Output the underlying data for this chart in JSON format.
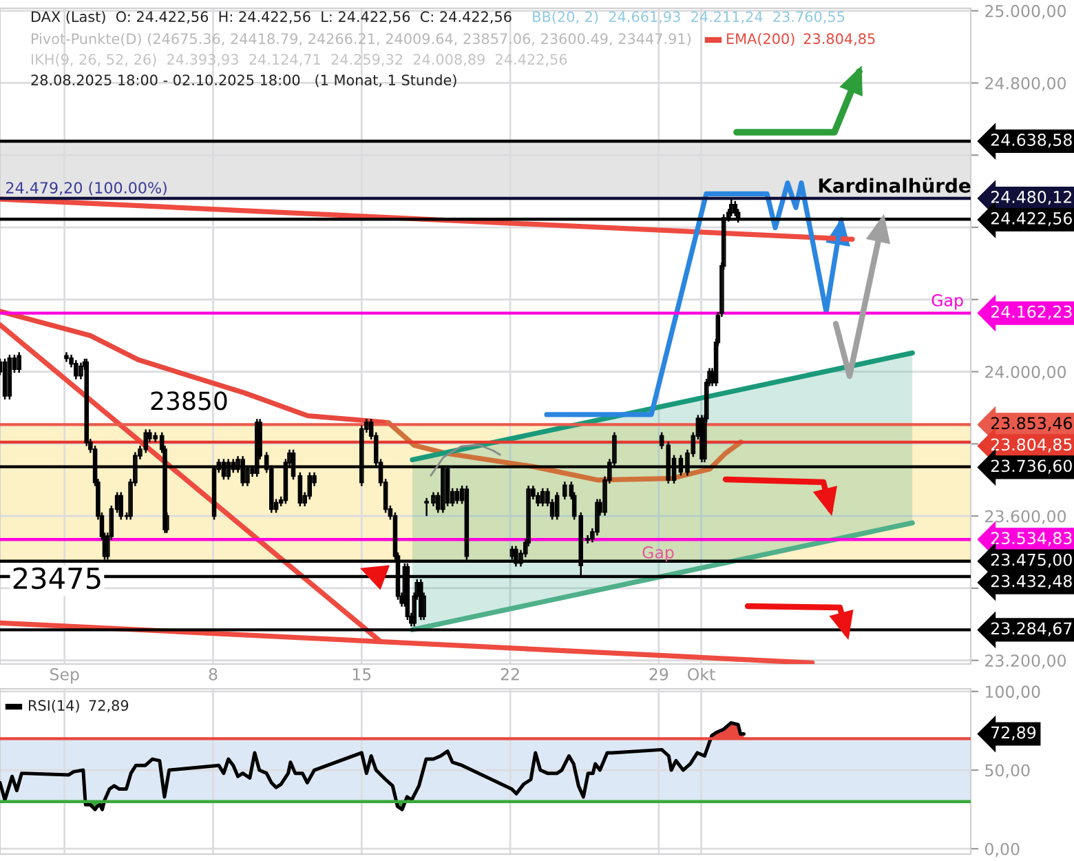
{
  "chart_data": [
    {
      "type": "candlestick",
      "title": "DAX (Last)  O: 24.422,56  H: 24.422,56  L: 24.422,56  C: 24.422,56",
      "subtitle": "28.08.2025 18:00 - 02.10.2025 18:00   (1 Monat, 1 Stunde)",
      "annotations": [
        "BB(20, 2)  24.661,93  24.211,24  23.760,55",
        "Pivot-Punkte(D) (24675.36, 24418.79, 24266.21, 24009.64, 23857.06, 23600.49, 23447.91)",
        "23.804,85",
        "IKH(9, 26, 52, 26)  24.393,93  24.124,71  24.259,32  24.008,89  24.422,56",
        "Gap",
        "Gap",
        {
          "text": "24.479,20 (100.00%)",
          "x": -1.8,
          "y": 24480.12
        },
        {
          "text": "23850",
          "x": 5.0,
          "y": 23853.46
        },
        {
          "text": "23475",
          "x": -1.5,
          "y": 23475
        },
        {
          "text": "Kardinalhürde",
          "x": 40.1,
          "y": 24480.12
        }
      ],
      "color": "#000000",
      "x": [
        -2.04,
        -1.81,
        -1.59,
        -1.36,
        -1.14,
        1.09,
        1.32,
        1.54,
        1.77,
        1.95,
        2.04,
        2.22,
        2.44,
        2.58,
        2.76,
        2.89,
        3.03,
        3.21,
        3.48,
        3.66,
        3.93,
        4.11,
        4.33,
        4.56,
        4.83,
        5.01,
        5.28,
        5.59,
        5.73,
        5.82,
        8.05,
        8.27,
        8.5,
        8.72,
        8.95,
        9.17,
        9.4,
        9.62,
        9.85,
        10.07,
        10.21,
        10.52,
        10.75,
        10.97,
        11.2,
        11.42,
        11.6,
        11.78,
        12.1,
        12.32,
        12.55,
        12.77,
        15.0,
        15.23,
        15.45,
        15.68,
        15.9,
        16.13,
        16.35,
        16.58,
        16.71,
        16.89,
        17.03,
        17.16,
        17.34,
        17.48,
        17.61,
        17.79,
        17.93,
        18.06,
        18.38,
        18.6,
        18.83,
        19.05,
        19.28,
        19.5,
        19.73,
        19.95,
        22.09,
        22.27,
        22.5,
        22.72,
        22.86,
        23.08,
        23.31,
        23.53,
        23.76,
        23.98,
        24.21,
        24.57,
        24.88,
        25.02,
        25.33,
        25.65,
        25.87,
        26.1,
        26.23,
        26.46,
        26.68,
        26.91,
        29.14,
        29.45,
        29.72,
        30.04,
        30.35,
        30.62,
        30.85,
        31.03,
        31.16,
        31.25,
        31.39,
        31.52,
        31.7,
        31.79,
        31.97,
        32.06,
        32.29,
        32.42,
        32.6,
        32.74
      ],
      "ohlc": [
        [
          24000,
          24036,
          23990,
          24026
        ],
        [
          24026,
          24036,
          23923,
          23933
        ],
        [
          23933,
          24047,
          23923,
          24037
        ],
        [
          24037,
          24047,
          23997,
          24007
        ],
        [
          24007,
          24054,
          23997,
          24044
        ],
        [
          24044,
          24054,
          24027,
          24037
        ],
        [
          24037,
          24047,
          24012,
          24022
        ],
        [
          24022,
          24032,
          23979,
          23989
        ],
        [
          23989,
          24025,
          23979,
          24015
        ],
        [
          24015,
          24036,
          24005,
          24026
        ],
        [
          24026,
          24036,
          23794,
          23804
        ],
        [
          23804,
          23814,
          23775,
          23785
        ],
        [
          23785,
          23795,
          23683,
          23693
        ],
        [
          23693,
          23703,
          23590,
          23600
        ],
        [
          23600,
          23610,
          23534,
          23544
        ],
        [
          23544,
          23554,
          23479,
          23489
        ],
        [
          23489,
          23554,
          23479,
          23544
        ],
        [
          23544,
          23629,
          23534,
          23619
        ],
        [
          23619,
          23666,
          23609,
          23656
        ],
        [
          23656,
          23666,
          23590,
          23600
        ],
        [
          23600,
          23610,
          23590,
          23600
        ],
        [
          23600,
          23703,
          23590,
          23693
        ],
        [
          23693,
          23777,
          23683,
          23767
        ],
        [
          23767,
          23795,
          23757,
          23785
        ],
        [
          23785,
          23840,
          23775,
          23830
        ],
        [
          23830,
          23840,
          23805,
          23815
        ],
        [
          23815,
          23832,
          23805,
          23822
        ],
        [
          23822,
          23832,
          23775,
          23785
        ],
        [
          23785,
          23795,
          23553,
          23563
        ],
        [
          23563,
          23610,
          23553,
          23600
        ],
        [
          23600,
          23740,
          23590,
          23730
        ],
        [
          23730,
          23758,
          23720,
          23748
        ],
        [
          23748,
          23758,
          23701,
          23711
        ],
        [
          23711,
          23758,
          23701,
          23748
        ],
        [
          23748,
          23758,
          23720,
          23730
        ],
        [
          23730,
          23766,
          23720,
          23756
        ],
        [
          23756,
          23766,
          23683,
          23693
        ],
        [
          23693,
          23740,
          23683,
          23730
        ],
        [
          23730,
          23740,
          23709,
          23719
        ],
        [
          23719,
          23869,
          23709,
          23859
        ],
        [
          23859,
          23869,
          23757,
          23767
        ],
        [
          23767,
          23777,
          23720,
          23730
        ],
        [
          23730,
          23740,
          23609,
          23619
        ],
        [
          23619,
          23647,
          23609,
          23637
        ],
        [
          23637,
          23654,
          23627,
          23644
        ],
        [
          23644,
          23758,
          23634,
          23748
        ],
        [
          23748,
          23784,
          23738,
          23774
        ],
        [
          23774,
          23784,
          23701,
          23711
        ],
        [
          23711,
          23721,
          23627,
          23637
        ],
        [
          23637,
          23666,
          23627,
          23656
        ],
        [
          23656,
          23721,
          23646,
          23711
        ],
        [
          23711,
          23721,
          23683,
          23693
        ],
        [
          23693,
          23851,
          23683,
          23841
        ],
        [
          23841,
          23869,
          23831,
          23859
        ],
        [
          23859,
          23869,
          23812,
          23822
        ],
        [
          23822,
          23832,
          23738,
          23748
        ],
        [
          23748,
          23758,
          23683,
          23693
        ],
        [
          23693,
          23703,
          23609,
          23619
        ],
        [
          23619,
          23629,
          23590,
          23600
        ],
        [
          23600,
          23610,
          23479,
          23489
        ],
        [
          23489,
          23499,
          23368,
          23378
        ],
        [
          23378,
          23388,
          23349,
          23359
        ],
        [
          23359,
          23469,
          23349,
          23459
        ],
        [
          23459,
          23469,
          23312,
          23322
        ],
        [
          23322,
          23332,
          23294,
          23304
        ],
        [
          23304,
          23388,
          23294,
          23378
        ],
        [
          23378,
          23425,
          23368,
          23415
        ],
        [
          23415,
          23425,
          23312,
          23322
        ],
        [
          23322,
          23388,
          23312,
          23378
        ],
        [
          23640,
          23650,
          23600,
          23637
        ],
        [
          23637,
          23666,
          23627,
          23656
        ],
        [
          23656,
          23666,
          23609,
          23619
        ],
        [
          23619,
          23740,
          23609,
          23730
        ],
        [
          23730,
          23740,
          23627,
          23637
        ],
        [
          23637,
          23677,
          23627,
          23667
        ],
        [
          23667,
          23677,
          23634,
          23644
        ],
        [
          23644,
          23684,
          23634,
          23674
        ],
        [
          23674,
          23684,
          23479,
          23489
        ],
        [
          23489,
          23517,
          23479,
          23507
        ],
        [
          23507,
          23517,
          23460,
          23470
        ],
        [
          23470,
          23506,
          23460,
          23496
        ],
        [
          23496,
          23536,
          23486,
          23526
        ],
        [
          23526,
          23684,
          23516,
          23674
        ],
        [
          23674,
          23684,
          23646,
          23656
        ],
        [
          23656,
          23666,
          23627,
          23637
        ],
        [
          23637,
          23677,
          23627,
          23667
        ],
        [
          23667,
          23677,
          23627,
          23637
        ],
        [
          23637,
          23647,
          23590,
          23600
        ],
        [
          23600,
          23666,
          23590,
          23656
        ],
        [
          23656,
          23695,
          23646,
          23685
        ],
        [
          23685,
          23695,
          23646,
          23656
        ],
        [
          23656,
          23666,
          23590,
          23600
        ],
        [
          23600,
          23610,
          23432,
          23463
        ],
        [
          23534,
          23547,
          23524,
          23537
        ],
        [
          23537,
          23566,
          23527,
          23556
        ],
        [
          23556,
          23647,
          23546,
          23637
        ],
        [
          23637,
          23647,
          23601,
          23611
        ],
        [
          23611,
          23710,
          23601,
          23700
        ],
        [
          23700,
          23758,
          23690,
          23748
        ],
        [
          23748,
          23832,
          23738,
          23822
        ],
        [
          23822,
          23832,
          23786,
          23796
        ],
        [
          23796,
          23806,
          23690,
          23700
        ],
        [
          23700,
          23769,
          23690,
          23759
        ],
        [
          23759,
          23769,
          23712,
          23722
        ],
        [
          23722,
          23784,
          23712,
          23774
        ],
        [
          23774,
          23832,
          23764,
          23822
        ],
        [
          23822,
          23880,
          23812,
          23870
        ],
        [
          23870,
          23880,
          23749,
          23759
        ],
        [
          23759,
          23880,
          23749,
          23870
        ],
        [
          23870,
          23980,
          23860,
          23970
        ],
        [
          23970,
          24010,
          23960,
          24000
        ],
        [
          24000,
          24010,
          23960,
          23970
        ],
        [
          23970,
          24091,
          23960,
          24081
        ],
        [
          24081,
          24165,
          24071,
          24155
        ],
        [
          24162,
          24303,
          24152,
          24293
        ],
        [
          24293,
          24436,
          24283,
          24426
        ],
        [
          24426,
          24451,
          24416,
          24441
        ],
        [
          24441,
          24480,
          24431,
          24463
        ],
        [
          24463,
          24473,
          24431,
          24441
        ],
        [
          24441,
          24451,
          24413,
          24422.56
        ]
      ],
      "series": [
        {
          "name": "EMA(200)",
          "type": "line",
          "color": "#e8483e",
          "x": [
            -2.04,
            2.22,
            4.47,
            9.49,
            12.46,
            16.26
          ],
          "values": [
            24167,
            24100,
            24033,
            23941,
            23878,
            23859
          ]
        },
        {
          "type": "line",
          "color": "#d0713a",
          "x": [
            16.26,
            17.48,
            18.96,
            23.08,
            26.1,
            29.59,
            31.39,
            32.15,
            32.87
          ],
          "values": [
            23859,
            23796,
            23774,
            23737,
            23700,
            23704,
            23730,
            23774,
            23805
          ]
        },
        {
          "type": "line",
          "color": "#ee4b41",
          "x": [
            -2.04,
            38.12
          ],
          "values": [
            24478,
            24367
          ]
        },
        {
          "type": "line",
          "color": "#ee4b41",
          "x": [
            -2.04,
            15.9
          ],
          "values": [
            24130,
            23252
          ]
        },
        {
          "type": "line",
          "color": "#ee4b41",
          "x": [
            -2.04,
            36.23
          ],
          "values": [
            23304,
            23193
          ]
        },
        {
          "type": "line",
          "color": "#1a9a7a",
          "x": [
            17.39,
            40.95
          ],
          "values": [
            23756,
            24052
          ],
          "lower": [
            23285,
            23581
          ],
          "upper": [
            23756,
            24052
          ]
        },
        {
          "type": "line",
          "color": "#4fb08a",
          "x": [
            17.39,
            40.95
          ],
          "values": [
            23285,
            23581
          ]
        },
        {
          "type": "line",
          "color": "#2b86e0",
          "x": [
            23.72,
            28.65,
            31.24,
            34.1,
            34.49,
            35.07,
            35.46,
            35.72,
            36.89,
            37.6
          ],
          "values": [
            23881,
            23881,
            24493,
            24493,
            24399,
            24523,
            24455,
            24523,
            24166,
            24421
          ]
        }
      ],
      "xlim": [
        -2.04,
        43.7
      ],
      "ylim": [
        23190,
        25007
      ],
      "xticks": [
        {
          "value": 1,
          "label": "Sep"
        },
        8,
        15,
        22,
        29,
        {
          "value": 31,
          "label": "Okt"
        }
      ],
      "yticks": [
        {
          "value": 23200,
          "label": "23.200,00"
        },
        {
          "value": 23400,
          "label": null
        },
        {
          "value": 23600,
          "label": "23.600,00"
        },
        {
          "value": 23800,
          "label": null
        },
        {
          "value": 24000,
          "label": "24.000,00"
        },
        {
          "value": 24200,
          "label": null
        },
        {
          "value": 24400,
          "label": null
        },
        {
          "value": 24600,
          "label": null
        },
        {
          "value": 24800,
          "label": "24.800,00"
        },
        {
          "value": 25000,
          "label": "25.000,00"
        }
      ],
      "bands": [
        {
          "axis": "y",
          "from": 23475,
          "to": 23853.46,
          "color": "#fdf1c6"
        },
        {
          "axis": "y",
          "from": 24480.12,
          "to": 24638.58,
          "color": "#e4e4e4"
        }
      ],
      "ref_lines": [
        {
          "axis": "y",
          "value": 24638.58,
          "label": "24.638,58",
          "color": "#000000"
        },
        {
          "axis": "y",
          "value": 24480.12,
          "label": "24.480,12",
          "color": "#10103a"
        },
        {
          "axis": "y",
          "value": 24422.56,
          "label": "24.422,56",
          "color": "#000000"
        },
        {
          "axis": "y",
          "value": 24162.23,
          "label": "24.162,23",
          "color": "#ff00dd"
        },
        {
          "axis": "y",
          "value": 23853.46,
          "label": "23.853,46",
          "color": "#ea5a4c"
        },
        {
          "axis": "y",
          "value": 23804.85,
          "label": "23.804,85",
          "color": "#e53b2f"
        },
        {
          "axis": "y",
          "value": 23736.6,
          "label": "23.736,60",
          "color": "#000000"
        },
        {
          "axis": "y",
          "value": 23534.83,
          "label": "23.534,83",
          "color": "#ff00dd"
        },
        {
          "axis": "y",
          "value": 23475.0,
          "label": "23.475,00",
          "color": "#000000"
        },
        {
          "axis": "y",
          "value": 23432.48,
          "label": "23.432,48",
          "color": "#000000"
        },
        {
          "axis": "y",
          "value": 23284.67,
          "label": "23.284,67",
          "color": "#000000"
        }
      ],
      "grid": true,
      "legend": "top"
    },
    {
      "type": "line",
      "annotations": [
        "72,89",
        "72,89"
      ],
      "series": [
        {
          "name": "RSI(14)",
          "color": "#000000",
          "x": [
            -2.04,
            -1.81,
            -1.47,
            -1.25,
            -1.02,
            1.2,
            1.43,
            1.88,
            1.99,
            2.22,
            2.44,
            2.55,
            2.67,
            2.78,
            2.89,
            3.12,
            3.34,
            3.57,
            3.91,
            4.13,
            4.36,
            4.58,
            4.81,
            5.14,
            5.48,
            5.71,
            5.93,
            8.27,
            8.5,
            8.72,
            8.95,
            9.17,
            9.4,
            9.73,
            9.96,
            10.18,
            10.52,
            10.75,
            10.97,
            11.2,
            11.54,
            11.65,
            11.87,
            12.21,
            12.44,
            12.77,
            15.0,
            15.23,
            15.45,
            15.68,
            16.13,
            16.46,
            16.69,
            16.91,
            17.14,
            17.36,
            17.7,
            18.04,
            18.38,
            18.72,
            19.05,
            19.28,
            19.73,
            22.07,
            22.29,
            22.63,
            22.97,
            23.19,
            23.42,
            23.76,
            24.21,
            24.43,
            24.77,
            24.99,
            25.22,
            25.45,
            25.67,
            25.9,
            26.01,
            26.23,
            26.57,
            26.8,
            29.14,
            29.47,
            29.59,
            29.81,
            30.15,
            30.49,
            30.82,
            31.16,
            31.5,
            31.72,
            32.06,
            32.4,
            32.74,
            32.85,
            33.01
          ],
          "values": [
            42,
            31,
            46,
            37,
            48,
            47,
            49,
            50,
            28,
            28,
            25,
            27,
            28,
            25,
            31,
            38,
            40,
            38,
            38,
            48,
            53,
            53,
            53,
            57,
            56,
            33,
            50,
            53,
            48,
            57,
            53,
            46,
            48,
            45,
            61,
            50,
            48,
            42,
            39,
            41,
            48,
            55,
            48,
            48,
            42,
            50,
            61,
            48,
            59,
            50,
            44,
            40,
            27,
            25,
            33,
            31,
            40,
            57,
            57,
            59,
            62,
            55,
            53,
            38,
            35,
            41,
            44,
            61,
            50,
            48,
            48,
            50,
            59,
            54,
            40,
            33,
            48,
            48,
            54,
            50,
            61,
            61,
            63,
            59,
            50,
            56,
            50,
            54,
            61,
            59,
            72,
            74,
            76,
            80,
            79,
            73,
            73
          ]
        }
      ],
      "xlim": [
        -2.04,
        43.7
      ],
      "ylim": [
        -3.4,
        101.7
      ],
      "xticks": [
        1,
        8,
        15,
        22,
        29,
        31
      ],
      "yticks": [
        {
          "value": 0,
          "label": "0,00"
        },
        {
          "value": 50,
          "label": "50,00"
        },
        {
          "value": 100,
          "label": "100,00"
        }
      ],
      "bands": [
        {
          "axis": "y",
          "from": 30,
          "to": 70,
          "color": "#dce8f5"
        }
      ],
      "ref_lines": [
        {
          "axis": "y",
          "value": 70,
          "color": "#e8483e"
        },
        {
          "axis": "y",
          "value": 30,
          "color": "#3aa83a"
        }
      ],
      "tick_labels": "y",
      "grid": true,
      "legend": "top left"
    }
  ]
}
